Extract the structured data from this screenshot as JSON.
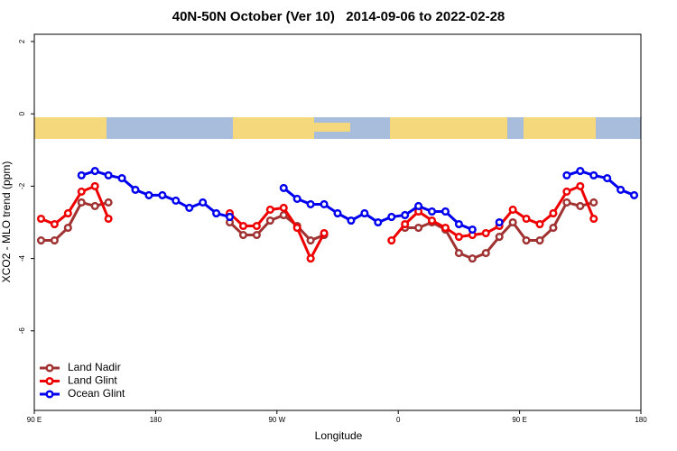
{
  "chart_data": {
    "type": "line",
    "title": "40N-50N October (Ver 10)   2014-09-06 to 2022-02-28",
    "x_label": "Longitude",
    "y_label": "XCO2 - MLO trend (ppm)",
    "xlim": [
      90,
      540
    ],
    "xticks": [
      {
        "value": 90,
        "label": "90 E"
      },
      180,
      {
        "value": 270,
        "label": "90 W"
      },
      {
        "value": 360,
        "label": "0"
      },
      {
        "value": 450,
        "label": "90 E"
      },
      {
        "value": 540,
        "label": "180"
      }
    ],
    "ylim": [
      -8.2,
      2.2
    ],
    "yticks": [
      2,
      0,
      -2,
      -4,
      -6
    ],
    "legend": "bottom-left",
    "x": [
      95,
      105,
      115,
      125,
      135,
      145,
      155,
      165,
      175,
      185,
      195,
      205,
      215,
      225,
      235,
      245,
      255,
      265,
      275,
      285,
      295,
      305,
      315,
      325,
      335,
      345,
      355,
      365,
      375,
      385,
      395,
      405,
      415,
      425,
      435,
      445,
      455,
      465,
      475,
      485,
      495,
      505,
      515,
      525,
      535
    ],
    "series": [
      {
        "name": "Land Nadir",
        "color": "#a03232",
        "values": [
          -3.5,
          -3.5,
          -3.15,
          -2.45,
          -2.55,
          -2.45,
          null,
          null,
          null,
          null,
          null,
          null,
          null,
          null,
          -3.0,
          -3.35,
          -3.35,
          -2.95,
          -2.8,
          -3.1,
          -3.5,
          -3.35,
          null,
          null,
          null,
          null,
          null,
          -3.15,
          -3.15,
          -3.0,
          -3.2,
          -3.85,
          -4.0,
          -3.85,
          -3.4,
          -3.0,
          -3.5,
          -3.5,
          -3.15,
          -2.45,
          -2.55,
          -2.45,
          null,
          null,
          null
        ]
      },
      {
        "name": "Land Glint",
        "color": "#ee0000",
        "values": [
          -2.9,
          -3.05,
          -2.75,
          -2.15,
          -2.0,
          -2.9,
          null,
          null,
          null,
          null,
          null,
          null,
          null,
          null,
          -2.75,
          -3.1,
          -3.1,
          -2.65,
          -2.6,
          -3.15,
          -4.0,
          -3.3,
          null,
          null,
          null,
          null,
          -3.5,
          -3.05,
          -2.7,
          -2.95,
          -3.15,
          -3.4,
          -3.35,
          -3.3,
          -3.1,
          -2.65,
          -2.9,
          -3.05,
          -2.75,
          -2.15,
          -2.0,
          -2.9,
          null,
          null,
          null
        ]
      },
      {
        "name": "Ocean Glint",
        "color": "#0000ee",
        "values": [
          null,
          null,
          null,
          -1.7,
          -1.58,
          -1.7,
          -1.78,
          -2.1,
          -2.25,
          -2.25,
          -2.4,
          -2.6,
          -2.45,
          -2.75,
          -2.85,
          null,
          null,
          null,
          -2.05,
          -2.35,
          -2.5,
          -2.5,
          -2.75,
          -2.95,
          -2.75,
          -3.0,
          -2.85,
          -2.8,
          -2.55,
          -2.7,
          -2.7,
          -3.05,
          -3.2,
          null,
          -3.0,
          null,
          null,
          null,
          null,
          -1.7,
          -1.58,
          -1.7,
          -1.78,
          -2.1,
          -2.25
        ]
      }
    ]
  }
}
